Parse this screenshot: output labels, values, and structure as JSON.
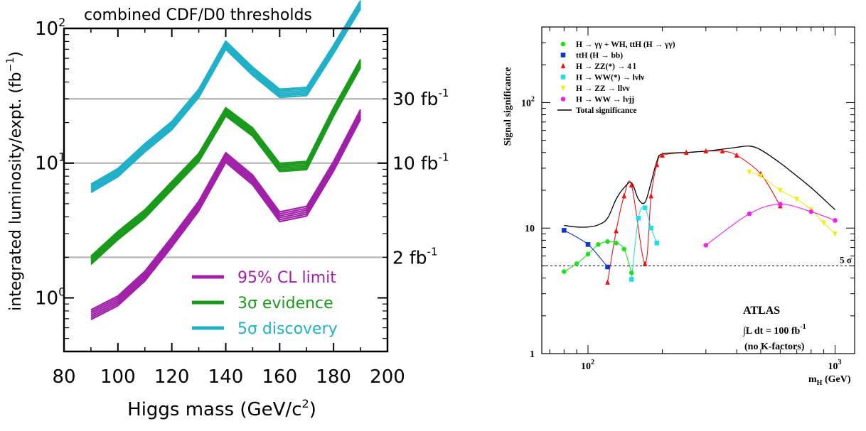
{
  "chart_data": [
    {
      "type": "line",
      "title": "combined CDF/D0 thresholds",
      "xlabel": "Higgs mass (GeV/c²)",
      "xlabel_main": "Higgs mass ",
      "xlabel_unit_base": "(GeV/c",
      "xlabel_unit_sup": "2",
      "xlabel_unit_tail": ")",
      "ylabel": "integrated luminosity/expt. (fb⁻¹)",
      "ylabel_main": "integrated luminosity/expt. (fb",
      "ylabel_sup": "−1",
      "ylabel_tail": ")",
      "xlim": [
        80,
        200
      ],
      "ylim": [
        0.4,
        100
      ],
      "yscale": "log",
      "grid": false,
      "legend_position": "bottom-right",
      "x_ticks": [
        {
          "value": 80,
          "label": "80"
        },
        {
          "value": 100,
          "label": "100"
        },
        {
          "value": 120,
          "label": "120"
        },
        {
          "value": 140,
          "label": "140"
        },
        {
          "value": 160,
          "label": "160"
        },
        {
          "value": 180,
          "label": "180"
        },
        {
          "value": 200,
          "label": "200"
        }
      ],
      "y_ticks": [
        {
          "value": 1,
          "base": "10",
          "exp": "0"
        },
        {
          "value": 10,
          "base": "10",
          "exp": "1"
        },
        {
          "value": 100,
          "base": "10",
          "exp": "2"
        }
      ],
      "reference_lines": [
        {
          "value": 30,
          "label": "30 fb",
          "exp": "-1"
        },
        {
          "value": 10,
          "label": "10 fb",
          "exp": "-1"
        },
        {
          "value": 2,
          "label": "2 fb",
          "exp": "-1"
        }
      ],
      "x": [
        90,
        100,
        110,
        120,
        130,
        140,
        150,
        160,
        170,
        180,
        190
      ],
      "series": [
        {
          "name": "95% CL limit",
          "color": "#a020a8",
          "band_factor": 1.18,
          "values": [
            0.75,
            0.95,
            1.45,
            2.6,
            4.8,
            11.0,
            7.5,
            4.0,
            4.4,
            9.5,
            23
          ]
        },
        {
          "name": "3σ evidence",
          "color": "#1a9a1a",
          "band_factor": 1.15,
          "values": [
            1.9,
            2.9,
            4.2,
            6.8,
            11.0,
            24,
            17,
            9.3,
            9.6,
            24,
            55
          ]
        },
        {
          "name": "5σ discovery",
          "color": "#20b0c8",
          "band_factor": 1.15,
          "values": [
            6.5,
            8.5,
            13,
            19,
            33,
            75,
            48,
            33,
            34,
            70,
            150
          ]
        }
      ]
    },
    {
      "type": "line",
      "title": "",
      "xlabel": "m_H (GeV)",
      "xlabel_base": "m",
      "xlabel_sub": "H",
      "xlabel_tail": " (GeV)",
      "ylabel": "Signal significance",
      "xlim": [
        65,
        1200
      ],
      "ylim": [
        1,
        400
      ],
      "xscale": "log",
      "yscale": "log",
      "legend_position": "top-left",
      "x_ticks": [
        {
          "value": 100,
          "base": "10",
          "exp": "2"
        },
        {
          "value": 1000,
          "base": "10",
          "exp": "3"
        }
      ],
      "y_ticks": [
        {
          "value": 1,
          "base": "1",
          "exp": ""
        },
        {
          "value": 10,
          "base": "10",
          "exp": ""
        },
        {
          "value": 100,
          "base": "10",
          "exp": "2"
        }
      ],
      "threshold": {
        "value": 5,
        "label": "5 σ"
      },
      "annotations": {
        "experiment": "ATLAS",
        "lumi_prefix": "∫L dt = 100 fb",
        "lumi_exp": "-1",
        "note": "(no K-factors)"
      },
      "series": [
        {
          "name": "H → γγ + WH, ttH (H → γγ)",
          "color": "#22dd22",
          "marker": "circle",
          "x": [
            80,
            90,
            100,
            110,
            120,
            130,
            140,
            150
          ],
          "y": [
            4.5,
            5.2,
            6.2,
            7.4,
            7.8,
            7.6,
            6.8,
            4.4
          ]
        },
        {
          "name": "ttH (H → bb)",
          "color": "#1133cc",
          "marker": "square",
          "x": [
            80,
            100,
            120
          ],
          "y": [
            9.6,
            7.4,
            4.9
          ]
        },
        {
          "name": "H → ZZ(*) → 4 l",
          "color": "#ee1111",
          "marker": "triangle-up",
          "x": [
            120,
            130,
            140,
            150,
            170,
            180,
            190,
            200,
            250,
            300,
            350,
            400,
            500,
            600
          ],
          "y": [
            3.7,
            9.5,
            18,
            22,
            5.2,
            18,
            32,
            38,
            40,
            41,
            41,
            38,
            27,
            15
          ]
        },
        {
          "name": "H → WW(*) → lνlν",
          "color": "#22dddd",
          "marker": "square",
          "x": [
            150,
            160,
            170,
            180,
            190
          ],
          "y": [
            3.9,
            12,
            14.5,
            10,
            7.6
          ]
        },
        {
          "name": "H → ZZ → llνν",
          "color": "#eeee11",
          "marker": "triangle-down",
          "x": [
            450,
            500,
            600,
            700,
            800,
            900,
            1000
          ],
          "y": [
            28,
            26,
            20,
            17,
            14,
            11,
            9
          ]
        },
        {
          "name": "H → WW → lνjj",
          "color": "#ee22ee",
          "marker": "circle",
          "x": [
            300,
            450,
            600,
            800,
            1000
          ],
          "y": [
            7.3,
            13,
            15.5,
            13.5,
            11.5
          ]
        },
        {
          "name": "Total significance",
          "color": "#000000",
          "marker": "none",
          "x": [
            80,
            90,
            100,
            110,
            120,
            130,
            140,
            150,
            160,
            170,
            180,
            190,
            200,
            250,
            300,
            350,
            400,
            450,
            500,
            600,
            700,
            800,
            900,
            1000
          ],
          "y": [
            10.5,
            10.2,
            10.2,
            10.6,
            12,
            17,
            21,
            23,
            17,
            16,
            23,
            34,
            39,
            40,
            41,
            42.5,
            44,
            45,
            42,
            33,
            26,
            21,
            17,
            14
          ]
        }
      ],
      "legend": [
        {
          "text": "H → γγ + WH, ttH (H → γγ)",
          "color": "#22dd22",
          "marker": "circle"
        },
        {
          "text": "ttH (H → bb)",
          "color": "#1133cc",
          "marker": "square"
        },
        {
          "text": "H → ZZ(*) → 4 l",
          "color": "#ee1111",
          "marker": "triangle-up"
        },
        {
          "text": "H → WW(*) → lνlν",
          "color": "#22dddd",
          "marker": "square"
        },
        {
          "text": "H → ZZ → llνν",
          "color": "#eeee11",
          "marker": "triangle-down"
        },
        {
          "text": "H → WW → lνjj",
          "color": "#ee22ee",
          "marker": "circle"
        },
        {
          "text": "Total significance",
          "color": "#000000",
          "marker": "line"
        }
      ]
    }
  ]
}
